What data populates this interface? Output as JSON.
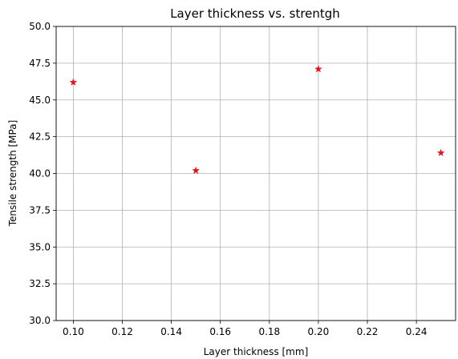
{
  "chart_data": {
    "type": "scatter",
    "title": "Layer thickness vs. strentgh",
    "xlabel": "Layer thickness [mm]",
    "ylabel": "Tensile strength [MPa]",
    "xlim": [
      0.093,
      0.256
    ],
    "ylim": [
      30.0,
      50.0
    ],
    "xticks": [
      "0.10",
      "0.12",
      "0.14",
      "0.16",
      "0.18",
      "0.20",
      "0.22",
      "0.24"
    ],
    "yticks": [
      "30.0",
      "32.5",
      "35.0",
      "37.5",
      "40.0",
      "42.5",
      "45.0",
      "47.5",
      "50.0"
    ],
    "grid": true,
    "marker": "star",
    "marker_color": "#e8141c",
    "series": [
      {
        "x": [
          0.1,
          0.15,
          0.2,
          0.25
        ],
        "y": [
          46.2,
          40.2,
          47.1,
          41.4
        ]
      }
    ]
  }
}
